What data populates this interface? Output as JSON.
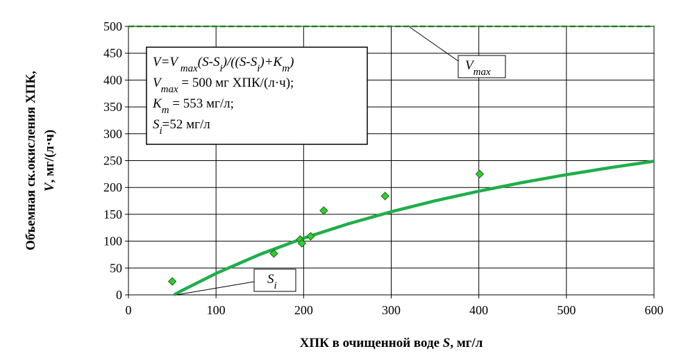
{
  "chart_data": {
    "type": "scatter",
    "x_label": [
      {
        "t": "ХПК в очищенной воде "
      },
      {
        "t": "S",
        "italic": true
      },
      {
        "t": ",  мг/л"
      }
    ],
    "y_label": [
      [
        {
          "t": "Объемная ск.окисления ХПК,"
        }
      ],
      [
        {
          "t": "V",
          "italic": true
        },
        {
          "t": ", мг/(л·ч)"
        }
      ]
    ],
    "xlim": [
      0,
      600
    ],
    "xticks": [
      0,
      100,
      200,
      300,
      400,
      500,
      600
    ],
    "ylim": [
      0,
      500
    ],
    "yticks": [
      0,
      50,
      100,
      150,
      200,
      250,
      300,
      350,
      400,
      450,
      500
    ],
    "grid": true,
    "points": {
      "color": "#33cc33",
      "x": [
        50,
        166,
        196,
        198,
        208,
        223,
        293,
        401
      ],
      "values": [
        25,
        77,
        103,
        96,
        109,
        157,
        184,
        225
      ]
    },
    "curve": {
      "color": "#1fae4a",
      "x": [
        52,
        60,
        100,
        150,
        200,
        250,
        300,
        350,
        400,
        450,
        500,
        550,
        600
      ],
      "values": [
        0,
        7.1,
        39.9,
        75.3,
        105.6,
        131.8,
        154.8,
        175.1,
        193.1,
        209.3,
        223.8,
        236.9,
        248.9
      ]
    },
    "vmax_line": {
      "color": "#1a8a1a",
      "x": [
        0,
        600
      ],
      "values": [
        500,
        500
      ]
    },
    "formula": [
      [
        {
          "t": "V=V",
          "italic": true
        },
        {
          "t": " max",
          "italic": true,
          "sub": true
        },
        {
          "t": "(S-S",
          "italic": true
        },
        {
          "t": "i",
          "italic": true,
          "sub": true
        },
        {
          "t": ")/((S-S",
          "italic": true
        },
        {
          "t": "i",
          "italic": true,
          "sub": true
        },
        {
          "t": ")+K",
          "italic": true
        },
        {
          "t": "m",
          "italic": true,
          "sub": true
        },
        {
          "t": ")",
          "italic": true
        }
      ],
      [
        {
          "t": "V",
          "italic": true
        },
        {
          "t": "max",
          "italic": true,
          "sub": true
        },
        {
          "t": " = 500 мг ХПК/(л·ч);"
        }
      ],
      [
        {
          "t": "K",
          "italic": true
        },
        {
          "t": "m",
          "italic": true,
          "sub": true
        },
        {
          "t": " = 553 мг/л;"
        }
      ],
      [
        {
          "t": "S",
          "italic": true
        },
        {
          "t": "i",
          "italic": true,
          "sub": true
        },
        {
          "t": "=52 мг/л"
        }
      ]
    ],
    "label_vmax": [
      {
        "t": "V",
        "italic": true
      },
      {
        "t": "max",
        "italic": true,
        "sub": true
      }
    ],
    "label_si": [
      {
        "t": "S",
        "italic": true
      },
      {
        "t": "i",
        "italic": true,
        "sub": true
      }
    ]
  }
}
